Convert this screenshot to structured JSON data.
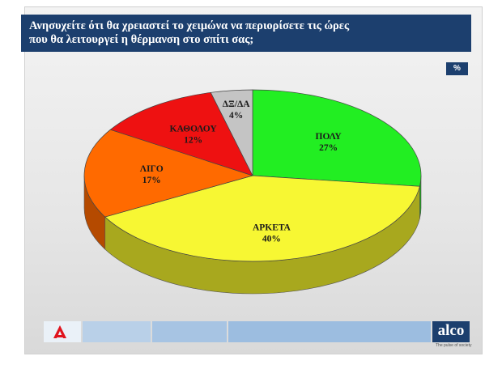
{
  "header": {
    "title_line1": "Ανησυχείτε ότι θα χρειαστεί το χειμώνα να περιορίσετε τις ώρες",
    "title_line2": "που θα λειτουργεί η θέρμανση στο σπίτι σας;"
  },
  "unit_badge": "%",
  "chart_data": {
    "type": "pie",
    "title": "Ανησυχείτε ότι θα χρειαστεί το χειμώνα να περιορίσετε τις ώρες που θα λειτουργεί η θέρμανση στο σπίτι σας;",
    "unit": "%",
    "categories": [
      "ΠΟΛΥ",
      "ΑΡΚΕΤΑ",
      "ΛΙΓΟ",
      "ΚΑΘΟΛΟΥ",
      "ΔΞ/ΔΑ"
    ],
    "values": [
      27,
      40,
      17,
      12,
      4
    ],
    "labels": [
      "27%",
      "40%",
      "17%",
      "12%",
      "4%"
    ],
    "colors": [
      "#22ee22",
      "#f7f733",
      "#ff6a00",
      "#ee1111",
      "#c4c4c4"
    ],
    "side_colors": [
      "#14a814",
      "#a8a81e",
      "#b54a00",
      "#a50808",
      "#8a8a8a"
    ]
  },
  "footer": {
    "logo_left_icon": "alpha-tv-logo-icon",
    "logo_right_text": "alco",
    "logo_right_tagline": "The pulse of society"
  }
}
